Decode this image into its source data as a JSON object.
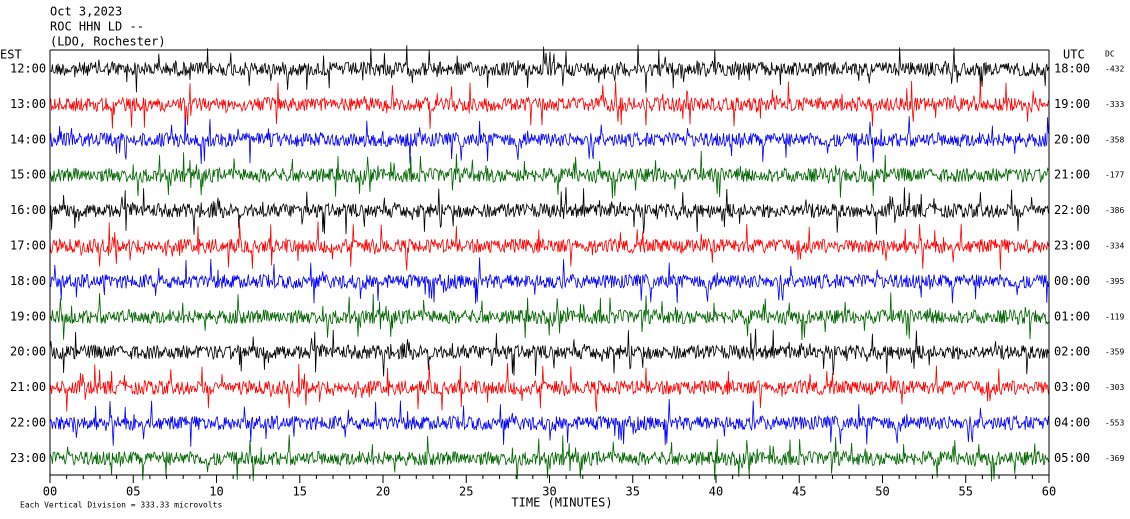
{
  "header": {
    "date": "Oct 3,2023",
    "station": "ROC HHN LD --",
    "location": "(LDO, Rochester)"
  },
  "left_label": "EST",
  "right_label": "UTC",
  "dc_label": "DC",
  "rows": [
    {
      "est": "12:00",
      "utc": "18:00",
      "dc": -432,
      "color": "#000000"
    },
    {
      "est": "13:00",
      "utc": "19:00",
      "dc": -333,
      "color": "#ff0000"
    },
    {
      "est": "14:00",
      "utc": "20:00",
      "dc": -358,
      "color": "#0000ff"
    },
    {
      "est": "15:00",
      "utc": "21:00",
      "dc": -177,
      "color": "#006400"
    },
    {
      "est": "16:00",
      "utc": "22:00",
      "dc": -386,
      "color": "#000000"
    },
    {
      "est": "17:00",
      "utc": "23:00",
      "dc": -334,
      "color": "#ff0000"
    },
    {
      "est": "18:00",
      "utc": "00:00",
      "dc": -395,
      "color": "#0000ff"
    },
    {
      "est": "19:00",
      "utc": "01:00",
      "dc": -119,
      "color": "#006400"
    },
    {
      "est": "20:00",
      "utc": "02:00",
      "dc": -359,
      "color": "#000000"
    },
    {
      "est": "21:00",
      "utc": "03:00",
      "dc": -303,
      "color": "#ff0000"
    },
    {
      "est": "22:00",
      "utc": "04:00",
      "dc": -553,
      "color": "#0000ff"
    },
    {
      "est": "23:00",
      "utc": "05:00",
      "dc": -369,
      "color": "#006400"
    }
  ],
  "x_axis": {
    "ticks": [
      "00",
      "05",
      "10",
      "15",
      "20",
      "25",
      "30",
      "35",
      "40",
      "45",
      "50",
      "55",
      "60"
    ],
    "label": "TIME (MINUTES)"
  },
  "footer": "Each Vertical Division =  333.33 microvolts"
}
